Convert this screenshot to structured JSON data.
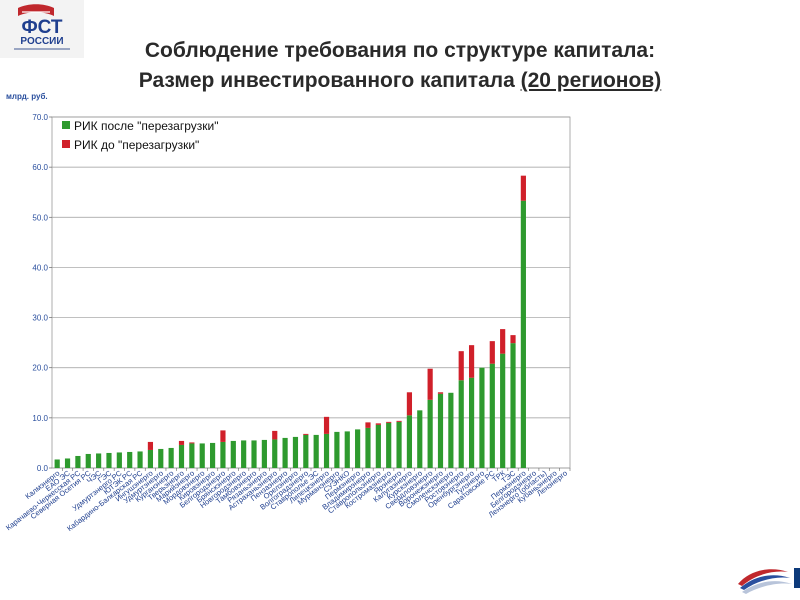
{
  "header": {
    "logo_text_1": "ФСТ",
    "logo_text_2": "РОССИИ",
    "title_line1": "Соблюдение требования по структуре капитала:",
    "title_line2_prefix": "Размер инвестированного капитала ",
    "title_line2_underlined": "(20 регионов)"
  },
  "chart_data": {
    "type": "bar",
    "stacked": true,
    "ylabel": "млрд. руб.",
    "ylim": [
      0,
      70
    ],
    "yticks": [
      "0.0",
      "10.0",
      "20.0",
      "30.0",
      "40.0",
      "50.0",
      "60.0",
      "70.0"
    ],
    "grid": true,
    "legend_position": "top-left",
    "categories": [
      "Калмэнерго",
      "ЕАО ЭС",
      "Карачаево-Черкесская РС",
      "Северная Осетия РС",
      "ЧЭС",
      "ГЭС",
      "Удмуртэнерго РС",
      "ЮТЭК РС",
      "Кабардино-Балкарская РС",
      "Ингушэнерго",
      "Удмуртэнерго",
      "Курганэнерго",
      "Тверьэнерго",
      "Марийэнерго",
      "Мордовэнерго",
      "Кировэнерго",
      "Белгородэнерго",
      "Брянскэнерго",
      "Новгородэнерго",
      "Тамбовэнерго",
      "Рязаньэнерго",
      "Астраханьэнерго",
      "Пензаэнерго",
      "Орелэнерго",
      "Волгоградэнерго",
      "Ставрополье ЭС",
      "Липецкэнерго",
      "Мурманэнерго",
      "СУЭНКО",
      "Пермэнерго",
      "Владимирэнерго",
      "Ставропольэнерго",
      "Костромаэнерго",
      "Ярэнерго",
      "Калугаэнерго",
      "Курскэнерго",
      "Свердловэнерго",
      "Воронежэнерго",
      "Смоленскэнерго",
      "Ростовэнерго",
      "Оренбургэнерго",
      "Тулэнерго",
      "Саратовские РС",
      "ТРК",
      "ТЭС",
      "Пермэнерго",
      "Белгородэнерго",
      "Ленэнерго (область)",
      "Кубаньэнерго",
      "Ленэнерго"
    ],
    "series": [
      {
        "name": "РИК после \"перезагрузки\"",
        "color": "#2e9a2e",
        "values": [
          1.7,
          1.9,
          2.4,
          2.8,
          2.9,
          3.0,
          3.1,
          3.2,
          3.3,
          3.6,
          3.8,
          4.0,
          4.6,
          4.9,
          4.9,
          5.0,
          5.2,
          5.4,
          5.5,
          5.5,
          5.6,
          5.7,
          6.0,
          6.2,
          6.6,
          6.6,
          6.8,
          7.2,
          7.3,
          7.7,
          8.0,
          8.6,
          9.0,
          9.2,
          10.5,
          11.5,
          13.6,
          14.8,
          15.0,
          17.5,
          18.0,
          20.0,
          20.8,
          22.8,
          24.9,
          53.3,
          0,
          0,
          0,
          0
        ]
      },
      {
        "name": "РИК до \"перезагрузки\"",
        "color": "#d0202a",
        "values": [
          0,
          0,
          0,
          0,
          0,
          0,
          0,
          0,
          0,
          1.6,
          0,
          0,
          0.8,
          0.2,
          0,
          0,
          2.3,
          0,
          0,
          0,
          0,
          1.7,
          0,
          0,
          0.2,
          0,
          3.4,
          0,
          0,
          0,
          1.1,
          0.3,
          0.2,
          0.2,
          4.6,
          0,
          6.2,
          0.3,
          0,
          5.8,
          6.5,
          0,
          4.5,
          4.9,
          1.6,
          5.0,
          0,
          0,
          0,
          0
        ]
      }
    ]
  }
}
